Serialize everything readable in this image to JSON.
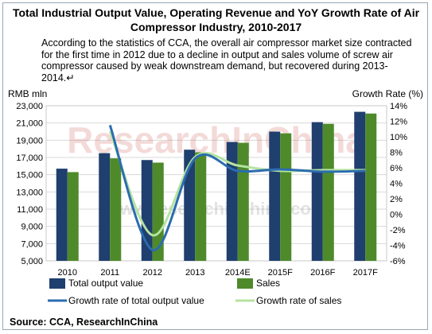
{
  "title": "Total Industrial Output Value, Operating Revenue and YoY Growth Rate of Air Compressor Industry, 2010-2017",
  "description": "According to the statistics of CCA, the overall air compressor market size contracted for the first time in 2012 due to a decline in output and sales volume of screw air compressor caused by weak downstream demand, but recovered during 2013-2014.↵",
  "source": "Source: CCA, ResearchInChina",
  "watermark": {
    "main": "ResearchInChina",
    "url": "www.researchinchina.com"
  },
  "chart_data": {
    "type": "bar",
    "categories": [
      "2010",
      "2011",
      "2012",
      "2013",
      "2014E",
      "2015F",
      "2016F",
      "2017F"
    ],
    "ylabel_left": "RMB mln",
    "ylabel_right": "Growth Rate (%)",
    "ylim_left": [
      5000,
      23000
    ],
    "yticks_left": [
      "5,000",
      "7,000",
      "9,000",
      "11,000",
      "13,000",
      "15,000",
      "17,000",
      "19,000",
      "21,000",
      "23,000"
    ],
    "ylim_right": [
      -6,
      14
    ],
    "yticks_right": [
      "-6%",
      "-4%",
      "-2%",
      "0%",
      "2%",
      "4%",
      "6%",
      "8%",
      "10%",
      "12%",
      "14%"
    ],
    "grid": true,
    "legend_position": "bottom",
    "series": [
      {
        "name": "Total output value",
        "kind": "bar",
        "color": "#1f3f6e",
        "values": [
          15700,
          17500,
          16700,
          17900,
          18800,
          20000,
          21100,
          22300
        ]
      },
      {
        "name": "Sales",
        "kind": "bar",
        "color": "#4e8a2a",
        "values": [
          15300,
          16900,
          16400,
          17600,
          18700,
          19800,
          20900,
          22100
        ]
      },
      {
        "name": "Growth rate of total output value",
        "kind": "line",
        "color": "#2b6cb0",
        "values": [
          null,
          11.5,
          -4.6,
          7.2,
          5.6,
          5.8,
          5.5,
          5.6
        ]
      },
      {
        "name": "Growth rate of sales",
        "kind": "line",
        "color": "#b5e3a1",
        "values": [
          null,
          10.7,
          -2.7,
          7.4,
          6.3,
          5.6,
          5.7,
          5.7
        ]
      }
    ]
  }
}
